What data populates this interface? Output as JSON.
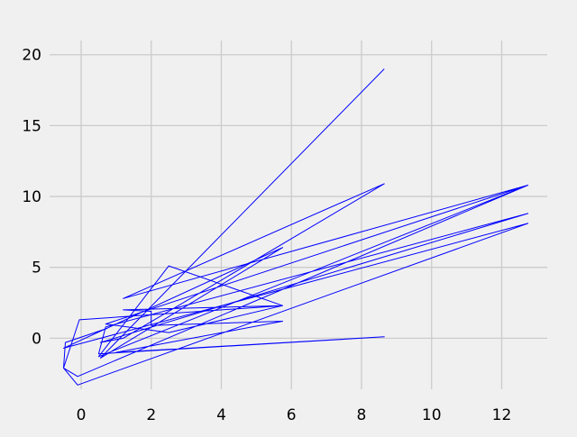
{
  "chart_data": {
    "type": "line",
    "title": "",
    "xlabel": "",
    "ylabel": "",
    "xlim": [
      -0.9,
      13.3
    ],
    "ylim": [
      -3.6,
      21.0
    ],
    "x_ticks": [
      0,
      2,
      4,
      6,
      8,
      10,
      12
    ],
    "y_ticks": [
      0,
      5,
      10,
      15,
      20
    ],
    "x_tick_labels": [
      "0",
      "2",
      "4",
      "6",
      "8",
      "10",
      "12"
    ],
    "y_tick_labels": [
      "0",
      "5",
      "10",
      "15",
      "20"
    ],
    "grid": true,
    "legend": "none",
    "colors": {
      "background": "#f0f0f0",
      "grid": "#cbcbcb",
      "line": "#0000ff"
    },
    "series": [
      {
        "points": [
          [
            8.65,
            19.0
          ],
          [
            0.55,
            -1.4
          ],
          [
            5.75,
            6.4
          ],
          [
            -0.5,
            -0.7
          ],
          [
            12.75,
            8.1
          ],
          [
            -0.1,
            -3.3
          ],
          [
            -0.5,
            -2.1
          ],
          [
            -0.05,
            1.3
          ],
          [
            5.75,
            2.3
          ],
          [
            2.5,
            5.1
          ],
          [
            0.5,
            -1.3
          ],
          [
            12.75,
            10.8
          ],
          [
            1.2,
            2.8
          ],
          [
            8.65,
            10.9
          ],
          [
            1.2,
            0.0
          ],
          [
            0.55,
            -0.3
          ],
          [
            12.75,
            8.8
          ],
          [
            0.7,
            0.8
          ],
          [
            0.5,
            -1.1
          ],
          [
            8.65,
            0.1
          ],
          [
            1.0,
            -1.0
          ],
          [
            5.75,
            1.2
          ],
          [
            2.0,
            0.9
          ],
          [
            2.0,
            1.9
          ],
          [
            1.2,
            2.0
          ],
          [
            5.75,
            2.3
          ],
          [
            2.5,
            0.4
          ],
          [
            0.7,
            1.0
          ],
          [
            12.75,
            10.8
          ],
          [
            -0.1,
            -2.7
          ],
          [
            -0.5,
            -2.1
          ],
          [
            -0.45,
            -0.3
          ],
          [
            0.75,
            0.7
          ]
        ]
      }
    ]
  }
}
